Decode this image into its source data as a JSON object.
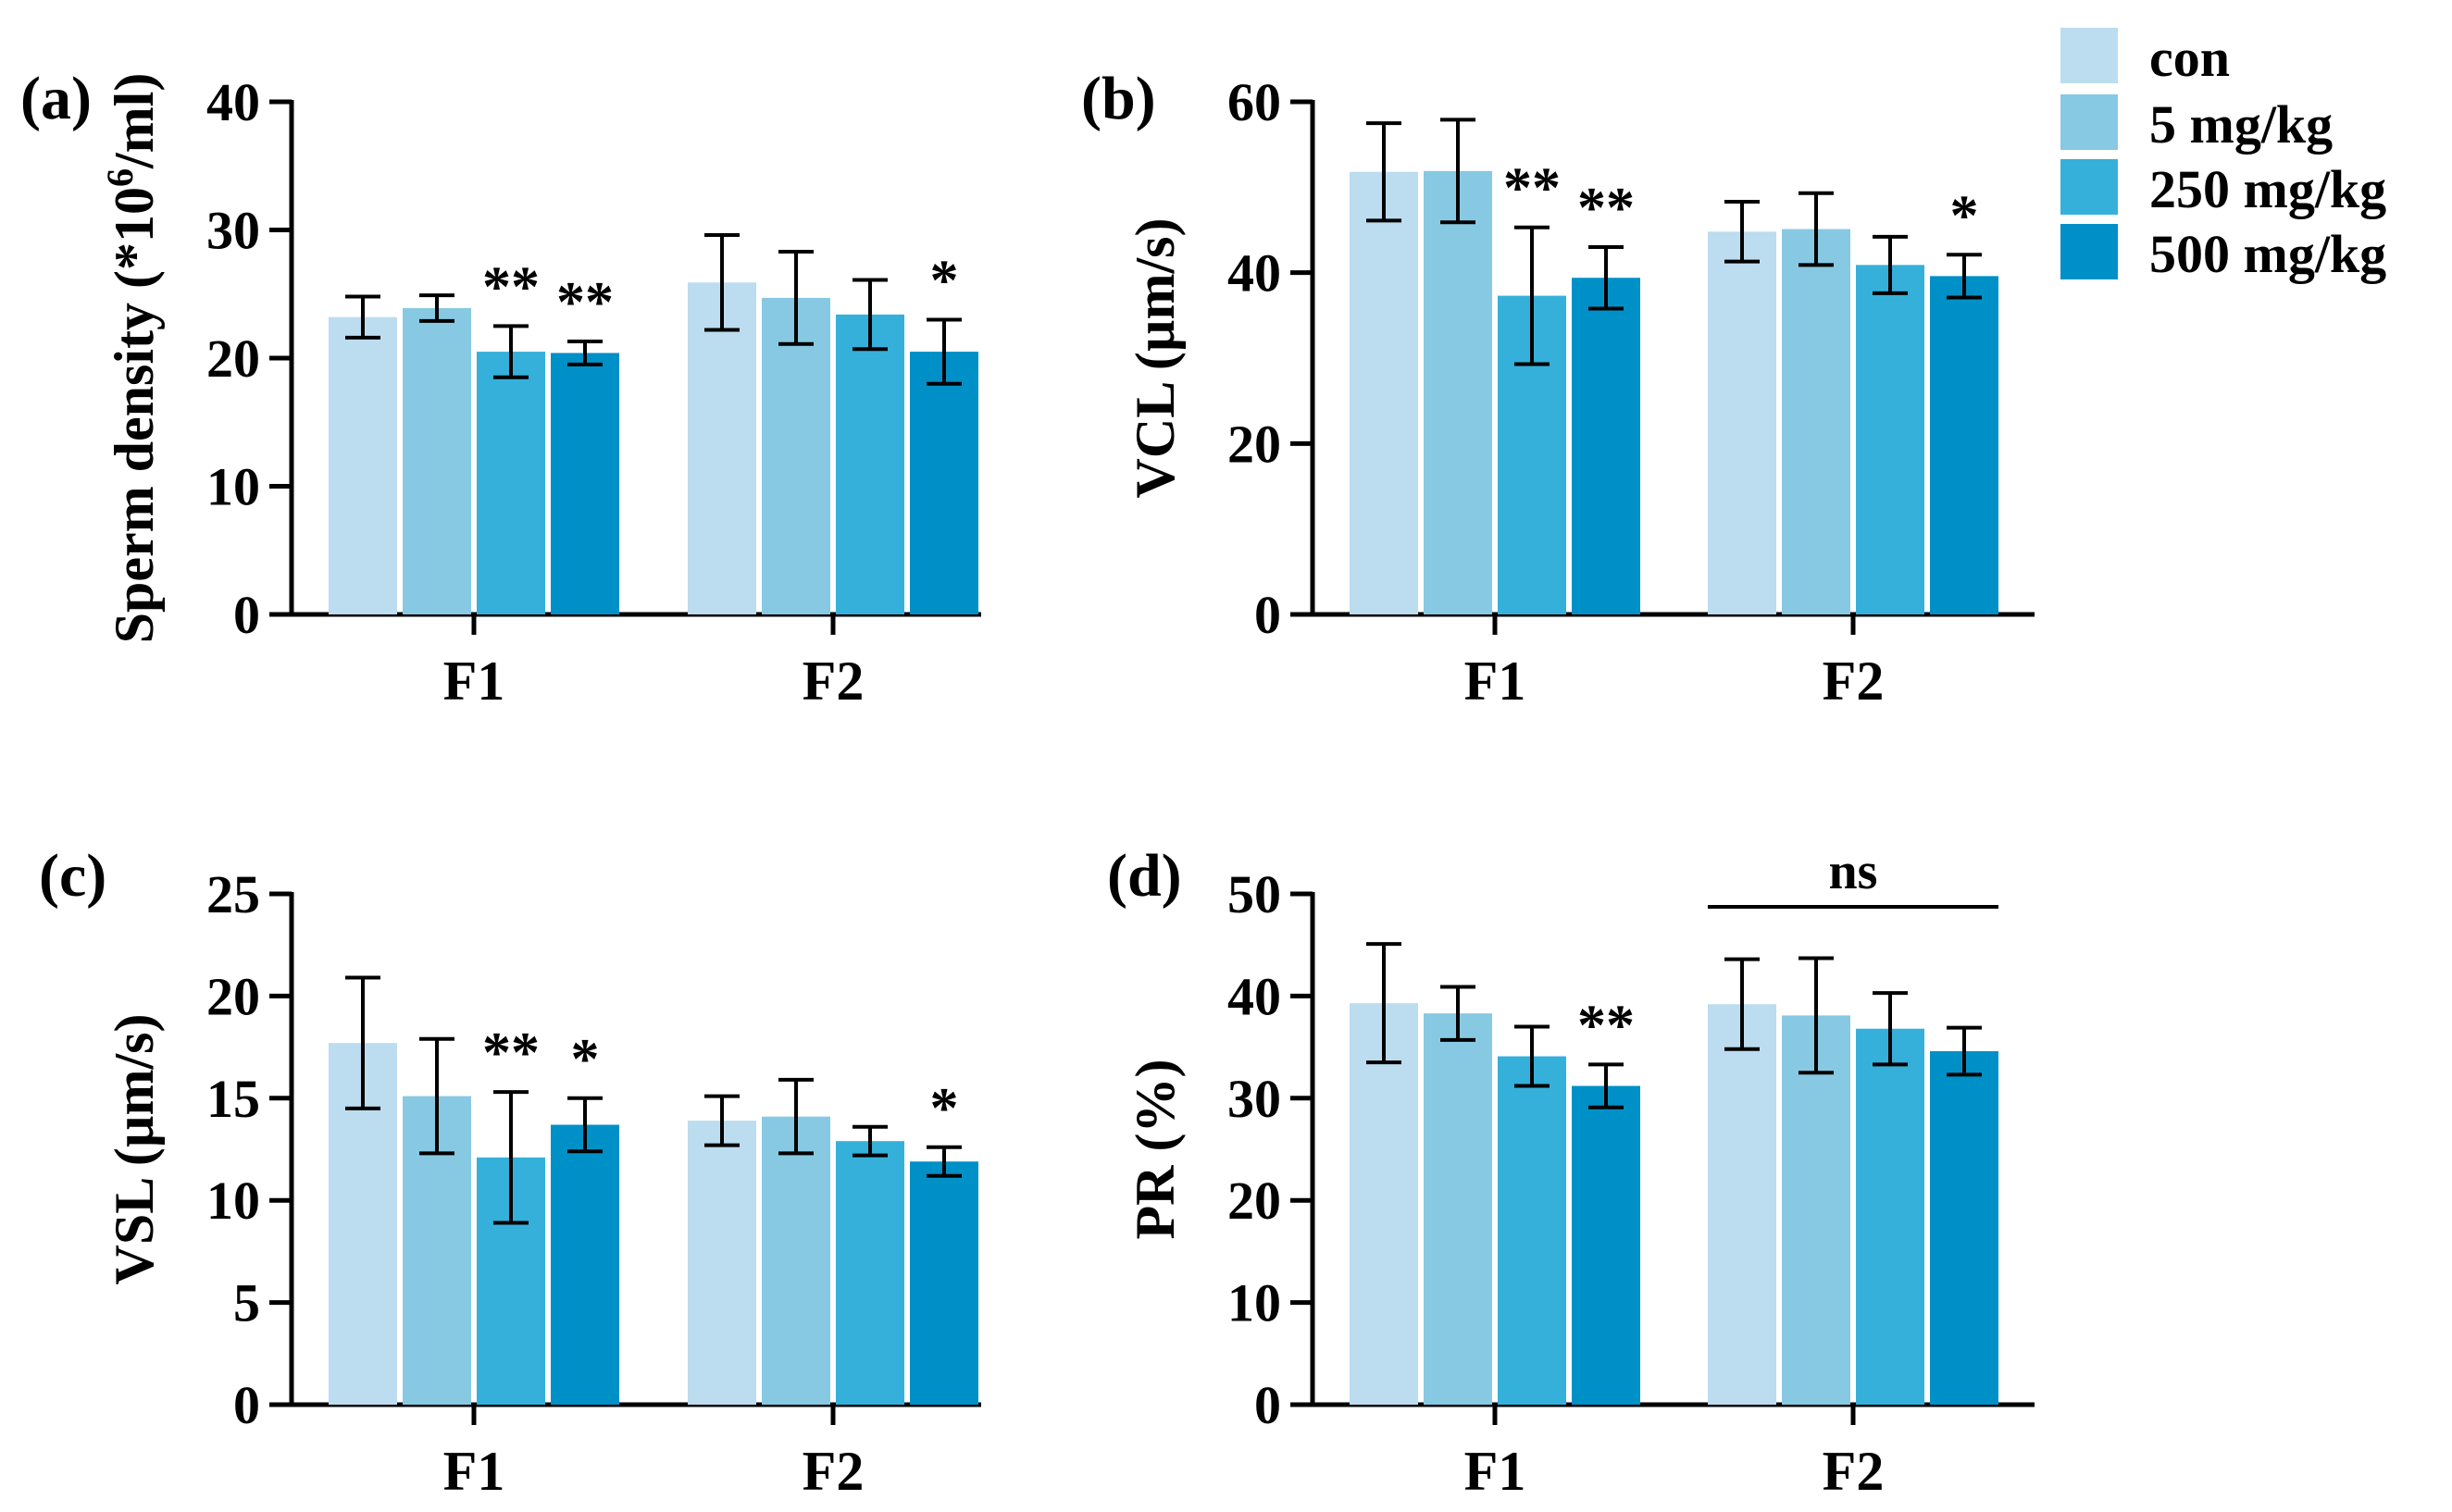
{
  "chart_data": [
    {
      "panel": "(a)",
      "type": "bar",
      "ylabel": "Sperm density (*10",
      "ylabel_sup": "6",
      "ylabel_tail": "/ml)",
      "ylim": [
        0,
        40
      ],
      "yticks": [
        0,
        10,
        20,
        30,
        40
      ],
      "categories": [
        "F1",
        "F2"
      ],
      "series": [
        {
          "name": "con",
          "values": [
            23.2,
            25.9
          ],
          "errors": [
            1.6,
            3.7
          ]
        },
        {
          "name": "5 mg/kg",
          "values": [
            23.9,
            24.7
          ],
          "errors": [
            1.0,
            3.6
          ]
        },
        {
          "name": "250 mg/kg",
          "values": [
            20.5,
            23.4
          ],
          "errors": [
            2.0,
            2.7
          ]
        },
        {
          "name": "500 mg/kg",
          "values": [
            20.4,
            20.5
          ],
          "errors": [
            0.9,
            2.5
          ]
        }
      ],
      "annotations": [
        [
          "",
          "",
          "**",
          "**"
        ],
        [
          "",
          "",
          "",
          "*"
        ]
      ],
      "ns": ""
    },
    {
      "panel": "(b)",
      "type": "bar",
      "ylabel": "VCL (µm/s)",
      "ylim": [
        0,
        60
      ],
      "yticks": [
        0,
        20,
        40,
        60
      ],
      "categories": [
        "F1",
        "F2"
      ],
      "series": [
        {
          "name": "con",
          "values": [
            51.8,
            44.8
          ],
          "errors": [
            5.7,
            3.5
          ]
        },
        {
          "name": "5 mg/kg",
          "values": [
            51.9,
            45.1
          ],
          "errors": [
            6.0,
            4.2
          ]
        },
        {
          "name": "250 mg/kg",
          "values": [
            37.3,
            40.9
          ],
          "errors": [
            8.0,
            3.3
          ]
        },
        {
          "name": "500 mg/kg",
          "values": [
            39.4,
            39.6
          ],
          "errors": [
            3.6,
            2.5
          ]
        }
      ],
      "annotations": [
        [
          "",
          "",
          "**",
          "**"
        ],
        [
          "",
          "",
          "",
          "*"
        ]
      ],
      "ns": ""
    },
    {
      "panel": "(c)",
      "type": "bar",
      "ylabel": "VSL (µm/s)",
      "ylim": [
        0,
        25
      ],
      "yticks": [
        0,
        5,
        10,
        15,
        20,
        25
      ],
      "categories": [
        "F1",
        "F2"
      ],
      "series": [
        {
          "name": "con",
          "values": [
            17.7,
            13.9
          ],
          "errors": [
            3.2,
            1.2
          ]
        },
        {
          "name": "5 mg/kg",
          "values": [
            15.1,
            14.1
          ],
          "errors": [
            2.8,
            1.8
          ]
        },
        {
          "name": "250 mg/kg",
          "values": [
            12.1,
            12.9
          ],
          "errors": [
            3.2,
            0.7
          ]
        },
        {
          "name": "500 mg/kg",
          "values": [
            13.7,
            11.9
          ],
          "errors": [
            1.3,
            0.7
          ]
        }
      ],
      "annotations": [
        [
          "",
          "",
          "**",
          "*"
        ],
        [
          "",
          "",
          "",
          "*"
        ]
      ],
      "ns": ""
    },
    {
      "panel": "(d)",
      "type": "bar",
      "ylabel": "PR (%)",
      "ylim": [
        0,
        50
      ],
      "yticks": [
        0,
        10,
        20,
        30,
        40,
        50
      ],
      "categories": [
        "F1",
        "F2"
      ],
      "series": [
        {
          "name": "con",
          "values": [
            39.3,
            39.2
          ],
          "errors": [
            5.8,
            4.4
          ]
        },
        {
          "name": "5 mg/kg",
          "values": [
            38.3,
            38.1
          ],
          "errors": [
            2.6,
            5.6
          ]
        },
        {
          "name": "250 mg/kg",
          "values": [
            34.1,
            36.8
          ],
          "errors": [
            2.9,
            3.5
          ]
        },
        {
          "name": "500 mg/kg",
          "values": [
            31.2,
            34.6
          ],
          "errors": [
            2.1,
            2.3
          ]
        }
      ],
      "annotations": [
        [
          "",
          "",
          "",
          "**"
        ],
        [
          "",
          "",
          "",
          ""
        ]
      ],
      "ns": "ns"
    }
  ],
  "legend": {
    "entries": [
      "con",
      "5 mg/kg",
      "250 mg/kg",
      "500 mg/kg"
    ],
    "colors": [
      "#bcdcf0",
      "#87c9e3",
      "#35b0da",
      "#0090c8"
    ]
  }
}
